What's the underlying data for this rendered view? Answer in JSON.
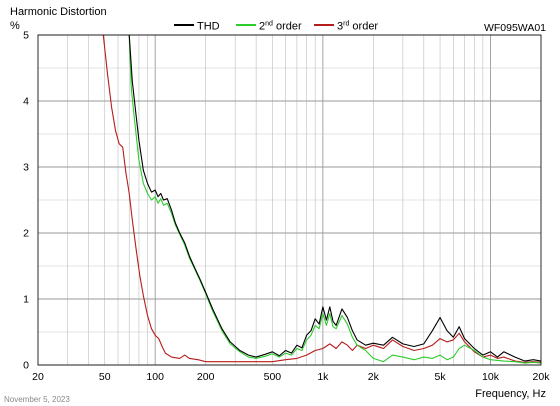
{
  "chart_data": {
    "type": "line",
    "title": "Harmonic Distortion",
    "ylabel": "%",
    "xlabel": "Frequency, Hz",
    "model": "WF095WA01",
    "date": "November 5, 2023",
    "xscale": "log",
    "xlim": [
      20,
      20000
    ],
    "ylim": [
      0,
      5
    ],
    "grid": true,
    "legend_position": "top-center",
    "x_ticks": [
      {
        "value": 20,
        "label": "20"
      },
      {
        "value": 50,
        "label": "50"
      },
      {
        "value": 100,
        "label": "100"
      },
      {
        "value": 200,
        "label": "200"
      },
      {
        "value": 500,
        "label": "500"
      },
      {
        "value": 1000,
        "label": "1k"
      },
      {
        "value": 2000,
        "label": "2k"
      },
      {
        "value": 5000,
        "label": "5k"
      },
      {
        "value": 10000,
        "label": "10k"
      },
      {
        "value": 20000,
        "label": "20k"
      }
    ],
    "y_ticks": [
      {
        "value": 0,
        "label": "0"
      },
      {
        "value": 1,
        "label": "1"
      },
      {
        "value": 2,
        "label": "2"
      },
      {
        "value": 3,
        "label": "3"
      },
      {
        "value": 4,
        "label": "4"
      },
      {
        "value": 5,
        "label": "5"
      }
    ],
    "series": [
      {
        "name": "THD",
        "legend_text": "THD",
        "legend_sup": "",
        "legend_suffix": "",
        "color": "#000000",
        "points": [
          [
            70,
            5.0
          ],
          [
            73,
            4.3
          ],
          [
            76,
            3.9
          ],
          [
            80,
            3.4
          ],
          [
            85,
            2.95
          ],
          [
            90,
            2.75
          ],
          [
            95,
            2.62
          ],
          [
            100,
            2.65
          ],
          [
            104,
            2.55
          ],
          [
            108,
            2.6
          ],
          [
            112,
            2.5
          ],
          [
            118,
            2.52
          ],
          [
            125,
            2.35
          ],
          [
            132,
            2.15
          ],
          [
            140,
            2.0
          ],
          [
            150,
            1.85
          ],
          [
            160,
            1.65
          ],
          [
            170,
            1.5
          ],
          [
            185,
            1.3
          ],
          [
            200,
            1.1
          ],
          [
            220,
            0.85
          ],
          [
            250,
            0.55
          ],
          [
            280,
            0.35
          ],
          [
            320,
            0.22
          ],
          [
            360,
            0.15
          ],
          [
            400,
            0.12
          ],
          [
            450,
            0.16
          ],
          [
            500,
            0.2
          ],
          [
            550,
            0.14
          ],
          [
            600,
            0.22
          ],
          [
            650,
            0.18
          ],
          [
            700,
            0.3
          ],
          [
            750,
            0.26
          ],
          [
            800,
            0.45
          ],
          [
            850,
            0.52
          ],
          [
            900,
            0.7
          ],
          [
            950,
            0.62
          ],
          [
            1000,
            0.88
          ],
          [
            1050,
            0.68
          ],
          [
            1100,
            0.88
          ],
          [
            1150,
            0.66
          ],
          [
            1200,
            0.6
          ],
          [
            1300,
            0.85
          ],
          [
            1400,
            0.72
          ],
          [
            1500,
            0.52
          ],
          [
            1600,
            0.38
          ],
          [
            1800,
            0.3
          ],
          [
            2000,
            0.33
          ],
          [
            2300,
            0.3
          ],
          [
            2600,
            0.42
          ],
          [
            3000,
            0.32
          ],
          [
            3500,
            0.28
          ],
          [
            4000,
            0.32
          ],
          [
            4500,
            0.52
          ],
          [
            5000,
            0.72
          ],
          [
            5500,
            0.52
          ],
          [
            6000,
            0.42
          ],
          [
            6500,
            0.58
          ],
          [
            7000,
            0.4
          ],
          [
            8000,
            0.25
          ],
          [
            9000,
            0.15
          ],
          [
            10000,
            0.2
          ],
          [
            11000,
            0.12
          ],
          [
            12000,
            0.2
          ],
          [
            14000,
            0.12
          ],
          [
            16000,
            0.06
          ],
          [
            18000,
            0.08
          ],
          [
            20000,
            0.06
          ]
        ]
      },
      {
        "name": "2nd order",
        "legend_text": "2",
        "legend_sup": "nd",
        "legend_suffix": " order",
        "color": "#2ecc2e",
        "points": [
          [
            70,
            5.0
          ],
          [
            72,
            4.2
          ],
          [
            75,
            3.75
          ],
          [
            80,
            3.1
          ],
          [
            85,
            2.75
          ],
          [
            90,
            2.6
          ],
          [
            95,
            2.5
          ],
          [
            100,
            2.55
          ],
          [
            104,
            2.45
          ],
          [
            108,
            2.52
          ],
          [
            112,
            2.42
          ],
          [
            118,
            2.45
          ],
          [
            125,
            2.3
          ],
          [
            132,
            2.12
          ],
          [
            140,
            1.98
          ],
          [
            150,
            1.82
          ],
          [
            160,
            1.62
          ],
          [
            170,
            1.48
          ],
          [
            185,
            1.28
          ],
          [
            200,
            1.08
          ],
          [
            220,
            0.82
          ],
          [
            250,
            0.52
          ],
          [
            280,
            0.32
          ],
          [
            320,
            0.2
          ],
          [
            360,
            0.12
          ],
          [
            400,
            0.1
          ],
          [
            450,
            0.13
          ],
          [
            500,
            0.17
          ],
          [
            550,
            0.12
          ],
          [
            600,
            0.18
          ],
          [
            650,
            0.15
          ],
          [
            700,
            0.25
          ],
          [
            750,
            0.22
          ],
          [
            800,
            0.38
          ],
          [
            850,
            0.45
          ],
          [
            900,
            0.6
          ],
          [
            950,
            0.55
          ],
          [
            1000,
            0.78
          ],
          [
            1050,
            0.6
          ],
          [
            1100,
            0.78
          ],
          [
            1150,
            0.58
          ],
          [
            1200,
            0.55
          ],
          [
            1300,
            0.75
          ],
          [
            1400,
            0.62
          ],
          [
            1500,
            0.42
          ],
          [
            1600,
            0.3
          ],
          [
            1800,
            0.22
          ],
          [
            2000,
            0.1
          ],
          [
            2300,
            0.05
          ],
          [
            2600,
            0.15
          ],
          [
            3000,
            0.12
          ],
          [
            3500,
            0.08
          ],
          [
            4000,
            0.12
          ],
          [
            4500,
            0.1
          ],
          [
            5000,
            0.15
          ],
          [
            5500,
            0.08
          ],
          [
            6000,
            0.12
          ],
          [
            6500,
            0.25
          ],
          [
            7000,
            0.3
          ],
          [
            8000,
            0.22
          ],
          [
            9000,
            0.12
          ],
          [
            10000,
            0.08
          ],
          [
            12000,
            0.06
          ],
          [
            14000,
            0.05
          ],
          [
            16000,
            0.03
          ],
          [
            18000,
            0.04
          ],
          [
            20000,
            0.03
          ]
        ]
      },
      {
        "name": "3rd order",
        "legend_text": "3",
        "legend_sup": "rd",
        "legend_suffix": " order",
        "color": "#b71c1c",
        "points": [
          [
            49,
            5.0
          ],
          [
            52,
            4.4
          ],
          [
            55,
            3.9
          ],
          [
            58,
            3.55
          ],
          [
            61,
            3.35
          ],
          [
            64,
            3.3
          ],
          [
            67,
            2.9
          ],
          [
            70,
            2.6
          ],
          [
            73,
            2.2
          ],
          [
            77,
            1.75
          ],
          [
            81,
            1.35
          ],
          [
            85,
            1.05
          ],
          [
            90,
            0.75
          ],
          [
            95,
            0.55
          ],
          [
            100,
            0.45
          ],
          [
            105,
            0.4
          ],
          [
            110,
            0.28
          ],
          [
            115,
            0.18
          ],
          [
            125,
            0.12
          ],
          [
            140,
            0.1
          ],
          [
            150,
            0.15
          ],
          [
            160,
            0.1
          ],
          [
            180,
            0.08
          ],
          [
            200,
            0.05
          ],
          [
            250,
            0.05
          ],
          [
            300,
            0.05
          ],
          [
            400,
            0.05
          ],
          [
            500,
            0.05
          ],
          [
            600,
            0.08
          ],
          [
            700,
            0.1
          ],
          [
            800,
            0.15
          ],
          [
            900,
            0.22
          ],
          [
            1000,
            0.25
          ],
          [
            1100,
            0.32
          ],
          [
            1200,
            0.25
          ],
          [
            1300,
            0.35
          ],
          [
            1400,
            0.3
          ],
          [
            1500,
            0.22
          ],
          [
            1600,
            0.3
          ],
          [
            1800,
            0.25
          ],
          [
            2000,
            0.3
          ],
          [
            2300,
            0.25
          ],
          [
            2600,
            0.38
          ],
          [
            3000,
            0.28
          ],
          [
            3500,
            0.22
          ],
          [
            4000,
            0.25
          ],
          [
            4500,
            0.3
          ],
          [
            5000,
            0.4
          ],
          [
            5500,
            0.35
          ],
          [
            6000,
            0.38
          ],
          [
            6500,
            0.48
          ],
          [
            7000,
            0.35
          ],
          [
            8000,
            0.2
          ],
          [
            9000,
            0.12
          ],
          [
            10000,
            0.15
          ],
          [
            11000,
            0.1
          ],
          [
            12000,
            0.12
          ],
          [
            14000,
            0.06
          ],
          [
            16000,
            0.04
          ],
          [
            18000,
            0.05
          ],
          [
            20000,
            0.04
          ]
        ]
      }
    ]
  }
}
